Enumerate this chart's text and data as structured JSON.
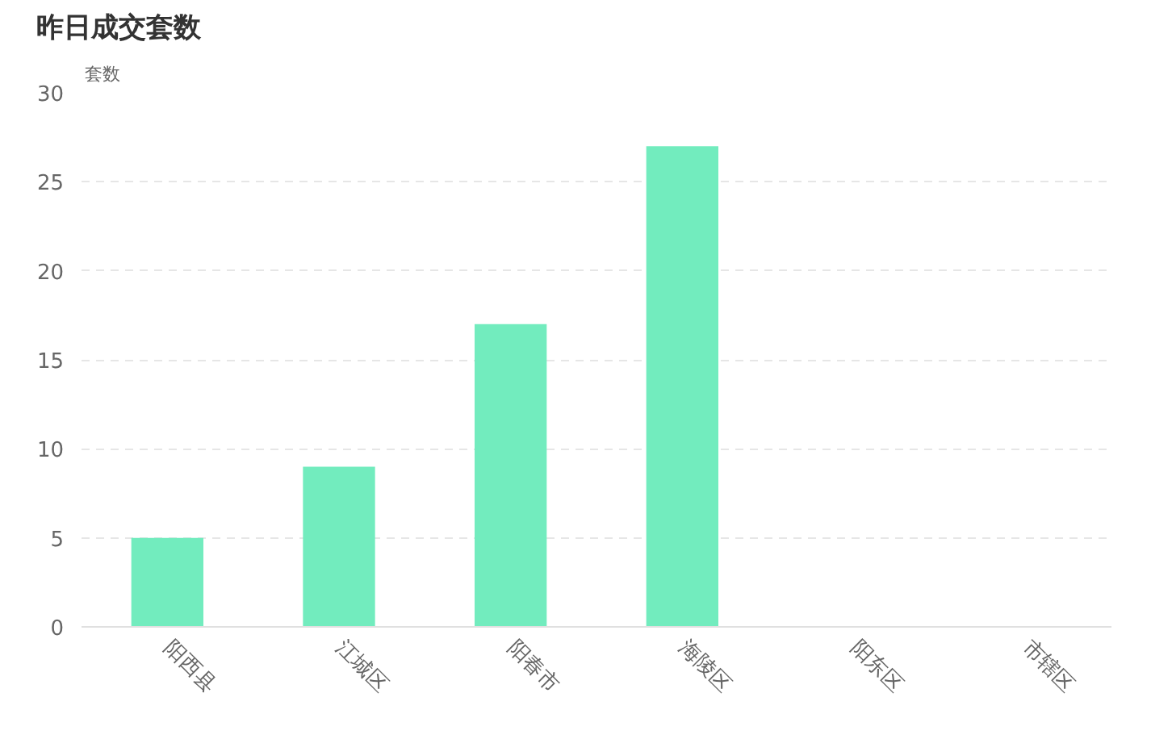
{
  "chart_data": {
    "type": "bar",
    "title": "昨日成交套数",
    "ylabel": "套数",
    "categories": [
      "阳西县",
      "江城区",
      "阳春市",
      "海陵区",
      "阳东区",
      "市辖区"
    ],
    "values": [
      5,
      9,
      17,
      27,
      0,
      0
    ],
    "color": "#72ecbe",
    "ylim": [
      0,
      30
    ],
    "yticks": [
      0,
      5,
      10,
      15,
      20,
      25,
      30
    ],
    "grid": "y"
  }
}
